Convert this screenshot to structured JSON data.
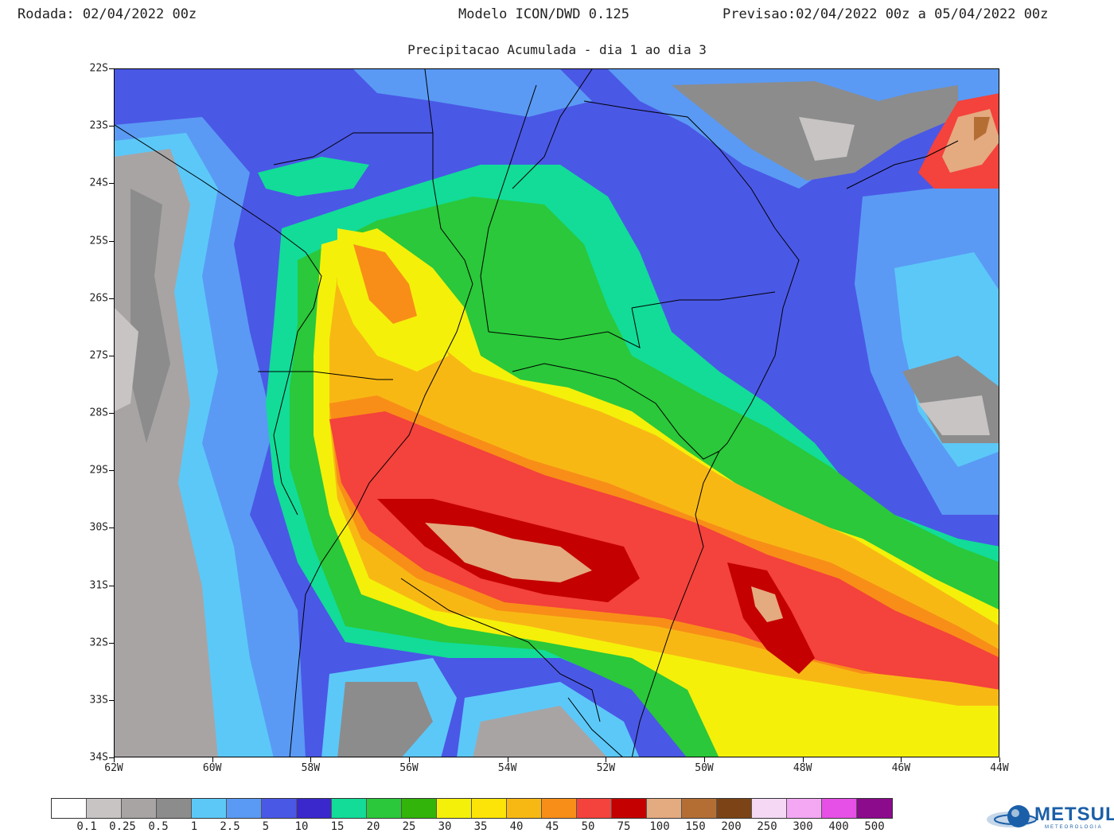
{
  "header": {
    "run": "Rodada: 02/04/2022 00z",
    "model": "Modelo ICON/DWD 0.125",
    "forecast": "Previsao:02/04/2022 00z a 05/04/2022 00z"
  },
  "subtitle": "Precipitacao Acumulada - dia 1 ao dia 3",
  "map": {
    "lat_labels": [
      "22S",
      "23S",
      "24S",
      "25S",
      "26S",
      "27S",
      "28S",
      "29S",
      "30S",
      "31S",
      "32S",
      "33S",
      "34S"
    ],
    "lon_labels": [
      "62W",
      "60W",
      "58W",
      "56W",
      "54W",
      "52W",
      "50W",
      "48W",
      "46W",
      "44W"
    ],
    "lat_range": [
      -34,
      -22
    ],
    "lon_range": [
      -62,
      -44
    ]
  },
  "legend": {
    "colors": [
      "#ffffff",
      "#c8c4c4",
      "#a8a4a4",
      "#8c8c8c",
      "#5cc8f8",
      "#5a9af4",
      "#4a58e6",
      "#3a28cc",
      "#12dc98",
      "#2ac83a",
      "#32b40a",
      "#f4f00a",
      "#fce408",
      "#f8b814",
      "#f88e18",
      "#f4423c",
      "#c40000",
      "#e4aa80",
      "#b46e34",
      "#7c4416",
      "#f4d8f4",
      "#f4a8f4",
      "#e650e6",
      "#8c0a8c"
    ],
    "labels": [
      "0.1",
      "0.25",
      "0.5",
      "1",
      "2.5",
      "5",
      "10",
      "15",
      "20",
      "25",
      "30",
      "35",
      "40",
      "45",
      "50",
      "75",
      "100",
      "150",
      "200",
      "250",
      "300",
      "400",
      "500"
    ]
  },
  "logo": {
    "name": "METSUL",
    "sub": "METEOROLOGIA"
  }
}
